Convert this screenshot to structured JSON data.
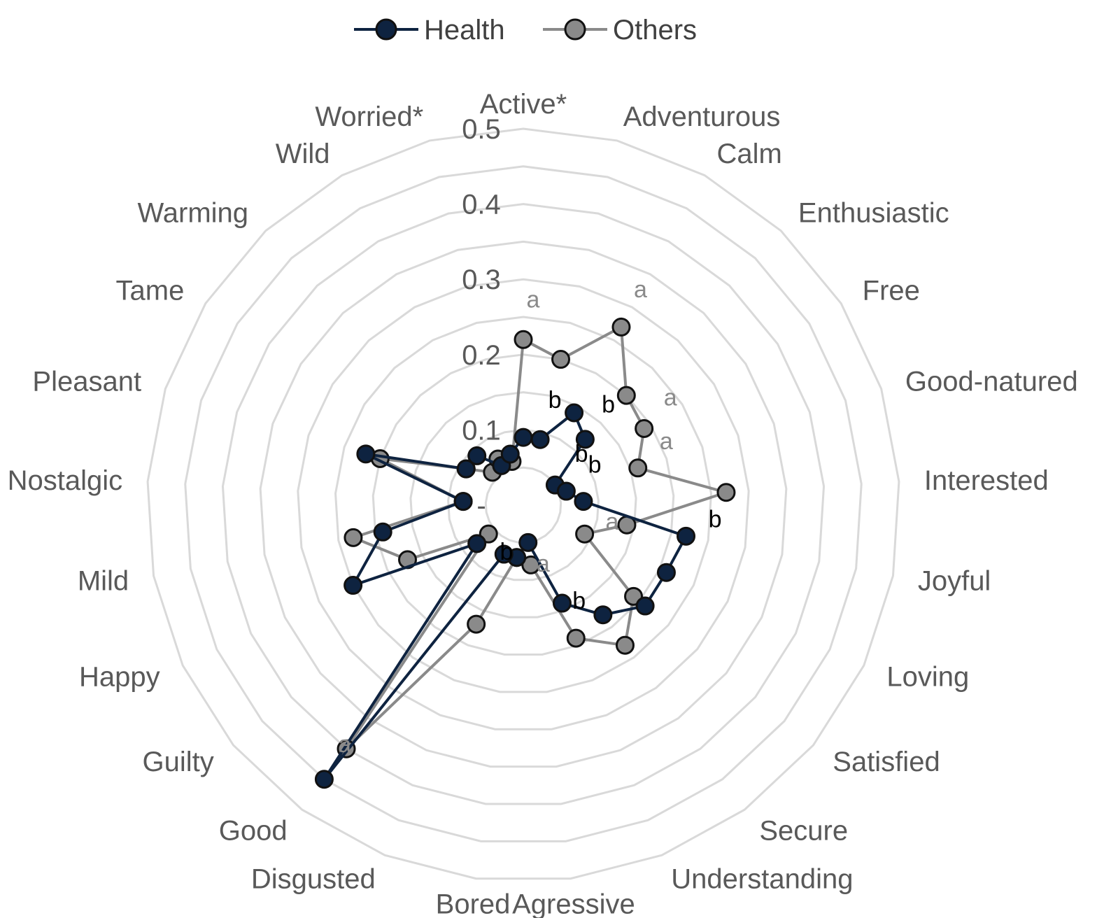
{
  "chart_data": {
    "type": "radar",
    "categories": [
      "Active*",
      "Adventurous",
      "Calm",
      "Enthusiastic",
      "Free",
      "Good-natured",
      "Interested",
      "Joyful",
      "Loving",
      "Satisfied",
      "Secure",
      "Understanding",
      "Agressive",
      "Bored",
      "Disgusted",
      "Good",
      "Guilty",
      "Happy",
      "Mild",
      "Nostalgic",
      "Pleasant",
      "Tame",
      "Warming",
      "Wild",
      "Worried*"
    ],
    "tick_labels": [
      "-",
      "0.1",
      "0.2",
      "0.3",
      "0.4",
      "0.5"
    ],
    "rmax": 0.5,
    "grid_levels": [
      0.05,
      0.1,
      0.15,
      0.2,
      0.25,
      0.3,
      0.35,
      0.4,
      0.45,
      0.5
    ],
    "legend_position": "top",
    "series": [
      {
        "name": "Health",
        "color": "#0e2340",
        "values": [
          0.09,
          0.09,
          0.14,
          0.12,
          0.05,
          0.06,
          0.08,
          0.22,
          0.21,
          0.21,
          0.18,
          0.14,
          0.05,
          0.07,
          0.07,
          0.45,
          0.08,
          0.25,
          0.19,
          0.08,
          0.22,
          0.09,
          0.09,
          0.06,
          0.07
        ]
      },
      {
        "name": "Others",
        "color": "#8a8a8a",
        "values": [
          0.22,
          0.2,
          0.27,
          0.2,
          0.19,
          0.16,
          0.27,
          0.14,
          0.09,
          0.19,
          0.23,
          0.19,
          0.08,
          0.07,
          0.17,
          0.4,
          0.06,
          0.17,
          0.23,
          0.08,
          0.2,
          0.09,
          0.06,
          0.07,
          0.06
        ]
      }
    ],
    "annotations": [
      {
        "text": "a",
        "series": "Others",
        "index": 0
      },
      {
        "text": "b",
        "series": "Health",
        "index": 1
      },
      {
        "text": "a",
        "series": "Others",
        "index": 2
      },
      {
        "text": "b",
        "series": "Health",
        "index": 3
      },
      {
        "text": "a",
        "series": "Others",
        "index": 4
      },
      {
        "text": "b",
        "series": "Health",
        "index": 4
      },
      {
        "text": "a",
        "series": "Others",
        "index": 5
      },
      {
        "text": "b",
        "series": "Health",
        "index": 5
      },
      {
        "text": "b",
        "series": "Health",
        "index": 7
      },
      {
        "text": "a",
        "series": "Others",
        "index": 8
      },
      {
        "text": "b",
        "series": "Health",
        "index": 11
      },
      {
        "text": "a",
        "series": "Others",
        "index": 12
      },
      {
        "text": "b",
        "series": "Health",
        "index": 14
      },
      {
        "text": "a",
        "series": "Others",
        "index": 15
      }
    ]
  }
}
